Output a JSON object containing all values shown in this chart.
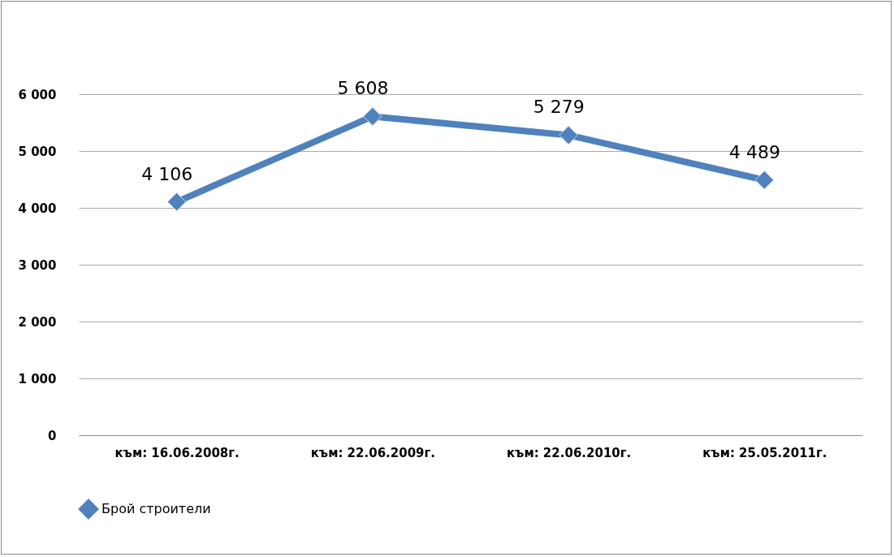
{
  "chart_data": {
    "type": "line",
    "categories": [
      "към: 16.06.2008г.",
      "към: 22.06.2009г.",
      "към: 22.06.2010г.",
      "към: 25.05.2011г."
    ],
    "series": [
      {
        "name": "Брой строители",
        "color": "#4f81bd",
        "values": [
          4106,
          5608,
          5279,
          4489
        ],
        "value_labels": [
          "4 106",
          "5 608",
          "5 279",
          "4 489"
        ]
      }
    ],
    "ylim": [
      0,
      6000
    ],
    "yticks": [
      {
        "value": 0,
        "label": "0"
      },
      {
        "value": 1000,
        "label": "1 000"
      },
      {
        "value": 2000,
        "label": "2 000"
      },
      {
        "value": 3000,
        "label": "3 000"
      },
      {
        "value": 4000,
        "label": "4 000"
      },
      {
        "value": 5000,
        "label": "5 000"
      },
      {
        "value": 6000,
        "label": "6 000"
      }
    ],
    "grid": "y",
    "legend": "bottom",
    "marker": "diamond",
    "line_style": "solid"
  }
}
